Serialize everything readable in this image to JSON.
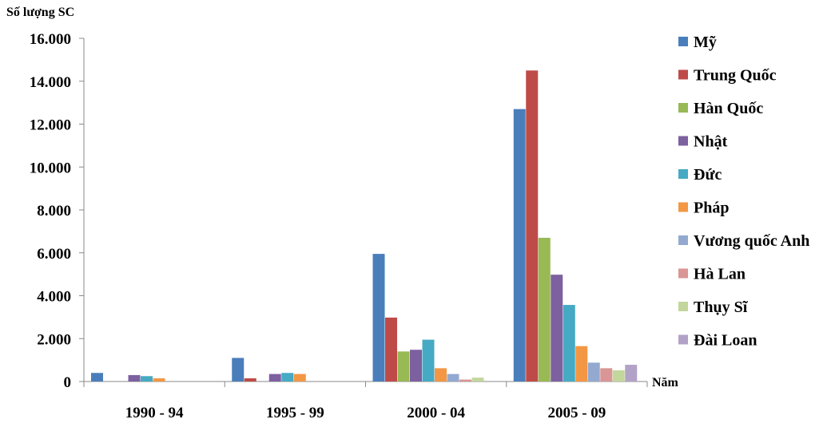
{
  "chart_data": {
    "type": "bar",
    "ylabel": "Số lượng SC",
    "xlabel": "Năm",
    "categories": [
      "1990 - 94",
      "1995 - 99",
      "2000 - 04",
      "2005 - 09"
    ],
    "ylim": [
      0,
      16000
    ],
    "yticks": [
      0,
      2000,
      4000,
      6000,
      8000,
      10000,
      12000,
      14000,
      16000
    ],
    "ytick_labels": [
      "0",
      "2.000",
      "4.000",
      "6.000",
      "8.000",
      "10.000",
      "12.000",
      "14.000",
      "16.000"
    ],
    "grid": false,
    "legend_position": "right",
    "series": [
      {
        "name": "Mỹ",
        "color": "#4a7ebb",
        "values": [
          400,
          1100,
          5950,
          12700
        ]
      },
      {
        "name": "Trung Quốc",
        "color": "#be4b48",
        "values": [
          0,
          150,
          2980,
          14500
        ]
      },
      {
        "name": "Hàn Quốc",
        "color": "#98b954",
        "values": [
          0,
          0,
          1400,
          6700
        ]
      },
      {
        "name": "Nhật",
        "color": "#7d60a0",
        "values": [
          300,
          350,
          1480,
          4980
        ]
      },
      {
        "name": "Đức",
        "color": "#46aac4",
        "values": [
          250,
          400,
          1950,
          3570
        ]
      },
      {
        "name": "Pháp",
        "color": "#f39744",
        "values": [
          150,
          350,
          620,
          1650
        ]
      },
      {
        "name": "Vương quốc Anh",
        "color": "#93a9d0",
        "values": [
          0,
          0,
          350,
          880
        ]
      },
      {
        "name": "Hà Lan",
        "color": "#d99694",
        "values": [
          0,
          0,
          90,
          620
        ]
      },
      {
        "name": "Thụy Sĩ",
        "color": "#c3d69b",
        "values": [
          0,
          0,
          180,
          520
        ]
      },
      {
        "name": "Đài Loan",
        "color": "#b2a2c7",
        "values": [
          0,
          0,
          0,
          780
        ]
      }
    ]
  }
}
